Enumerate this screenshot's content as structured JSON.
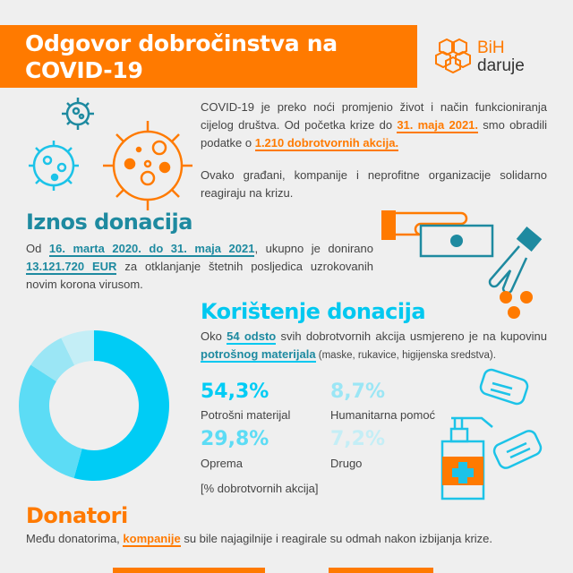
{
  "header": {
    "title": "Odgovor dobročinstva na COVID-19",
    "logo": {
      "line1": "BiH",
      "line2": "daruje"
    }
  },
  "intro": {
    "p1_a": "COVID-19 je preko noći promjenio život i način funkcioniranja cijelog društva. Od početka krize do ",
    "p1_hl1": "31. maja 2021.",
    "p1_b": " smo obradili podatke o ",
    "p1_hl2": "1.210 dobrotvornih akcija.",
    "p2": "Ovako građani, kompanije i neprofitne organizacije solidarno reagiraju na krizu."
  },
  "iznos": {
    "heading": "Iznos donacija",
    "a": "Od ",
    "hl1": "16. marta 2020. do 31. maja 2021",
    "b": ", ukupno je donirano ",
    "hl2": "13.121.720 EUR",
    "c": " za otklanjanje štetnih posljedica uzrokovanih novim korona virusom."
  },
  "koristenje": {
    "heading": "Korištenje donacija",
    "a": "Oko ",
    "hl1": "54 odsto",
    "b": " svih dobrotvornih akcija usmjereno je na kupovinu ",
    "hl2": "potrošnog materijala",
    "c": " (maske, rukavice, higijenska sredstva).",
    "unit_note": "[% dobrotvornih akcija]"
  },
  "chart_data": {
    "type": "pie",
    "donut": true,
    "categories": [
      "Potrošni materijal",
      "Oprema",
      "Humanitarna pomoć",
      "Drugo"
    ],
    "values": [
      54.3,
      29.8,
      8.7,
      7.2
    ],
    "labels": [
      "54,3%",
      "29,8%",
      "8,7%",
      "7,2%"
    ],
    "colors": [
      "#00ccf5",
      "#5cdcf5",
      "#9be6f5",
      "#c4eef6"
    ],
    "unit": "[% dobrotvornih akcija]"
  },
  "donatori": {
    "heading": "Donatori",
    "a": "Među donatorima, ",
    "hl": "kompanije",
    "b": " su bile najagilnije i reagirale su odmah nakon izbijanja krize."
  },
  "colors": {
    "orange": "#ff7a00",
    "teal": "#1e8aa0",
    "cyan": "#00c8f0",
    "background": "#efefef"
  }
}
